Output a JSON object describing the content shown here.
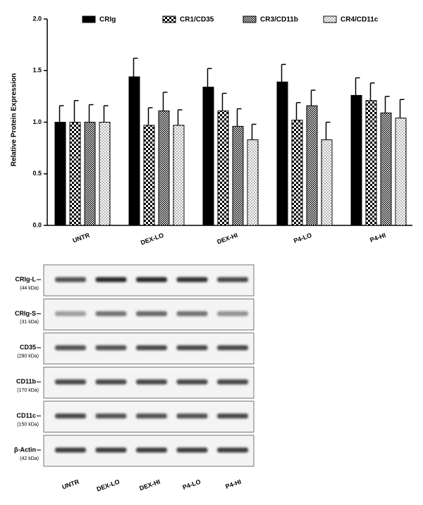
{
  "chart_data": {
    "type": "bar",
    "ylabel": "Relative Protein Expression",
    "categories": [
      "UNTR",
      "DEX-LO",
      "DEX-HI",
      "P4-LO",
      "P4-HI"
    ],
    "series": [
      {
        "name": "CRIg",
        "color": "#000000",
        "pattern": "solid",
        "values": [
          1.0,
          1.44,
          1.34,
          1.39,
          1.26
        ],
        "errors": [
          0.16,
          0.18,
          0.18,
          0.17,
          0.17
        ]
      },
      {
        "name": "CR1/CD35",
        "color": "#000000",
        "pattern": "checker",
        "values": [
          1.0,
          0.97,
          1.11,
          1.02,
          1.21
        ],
        "errors": [
          0.21,
          0.17,
          0.17,
          0.17,
          0.17
        ]
      },
      {
        "name": "CR3/CD11b",
        "color": "#000000",
        "pattern": "dense-checker",
        "values": [
          1.0,
          1.11,
          0.96,
          1.16,
          1.09
        ],
        "errors": [
          0.17,
          0.18,
          0.17,
          0.15,
          0.16
        ]
      },
      {
        "name": "CR4/CD11c",
        "color": "#000000",
        "pattern": "dots",
        "values": [
          1.0,
          0.97,
          0.83,
          0.83,
          1.04
        ],
        "errors": [
          0.16,
          0.15,
          0.15,
          0.17,
          0.18
        ]
      }
    ],
    "ylim": [
      0,
      2
    ],
    "yticks": [
      {
        "value": 0,
        "label": "0.0"
      },
      0.5,
      {
        "value": 1,
        "label": "1.0"
      },
      1.5,
      {
        "value": 2,
        "label": "2.0"
      }
    ],
    "grid": false,
    "legend": "top"
  },
  "blot": {
    "rows": [
      {
        "label": "CRIg-L",
        "kda": "(44 kDa)"
      },
      {
        "label": "CRIg-S",
        "kda": "(31 kDa)"
      },
      {
        "label": "CD35",
        "kda": "(280 kDa)"
      },
      {
        "label": "CD11b",
        "kda": "(170 kDa)"
      },
      {
        "label": "CD11c",
        "kda": "(150 kDa)"
      },
      {
        "label": "β-Actin",
        "kda": "(42 kDa)"
      }
    ],
    "lanes": [
      "UNTR",
      "DEX-LO",
      "DEX-HI",
      "P4-LO",
      "P4-HI"
    ]
  }
}
